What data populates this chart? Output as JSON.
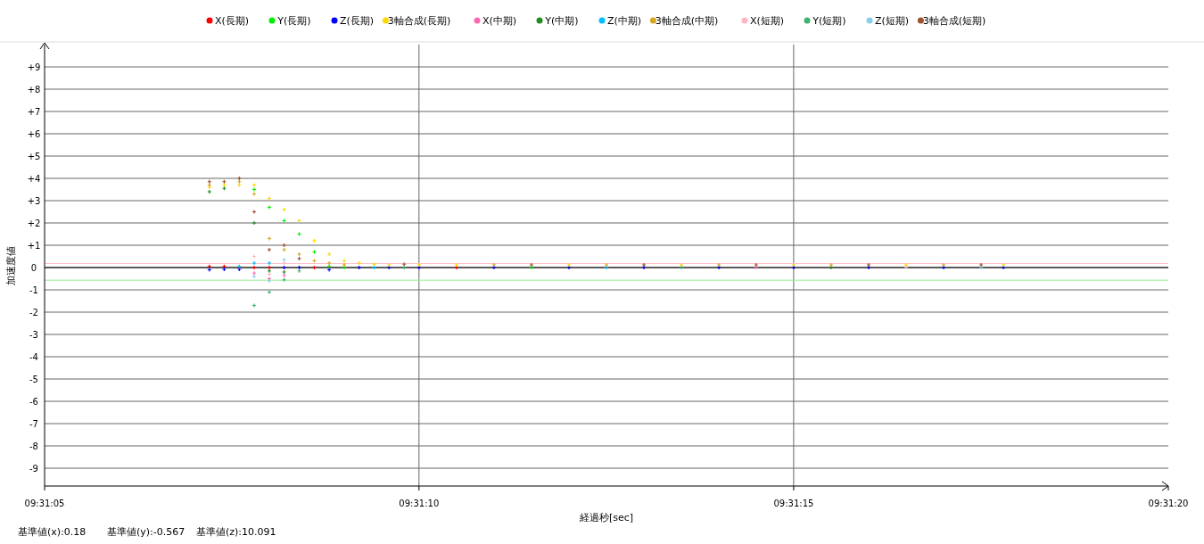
{
  "chart_data": {
    "type": "scatter",
    "xlabel": "経過秒[sec]",
    "ylabel": "加速度値",
    "annotations": [
      "基準値(x):0.18",
      "基準値(y):-0.567",
      "基準値(z):10.091"
    ],
    "x": [
      9.518667,
      9.518722,
      9.518778,
      9.518833,
      9.518889,
      9.518944,
      9.519,
      9.519056,
      9.519111,
      9.519167,
      9.519222,
      9.519278,
      9.519333,
      9.519389,
      9.519444,
      9.519583,
      9.519722,
      9.519861,
      9.52,
      9.520139,
      9.520278,
      9.520417,
      9.520556,
      9.520694,
      9.520833,
      9.520972,
      9.521111,
      9.52125,
      9.521389,
      9.521528,
      9.521611
    ],
    "series": [
      {
        "name": "X(長期)",
        "color": "#ff0000",
        "values": [
          0.05,
          0.05,
          null,
          0,
          0,
          null,
          null,
          0,
          null,
          null,
          null,
          null,
          null,
          null,
          null,
          0,
          null,
          null,
          null,
          null,
          null,
          null,
          null,
          null,
          null,
          null,
          null,
          null,
          null,
          null,
          null
        ]
      },
      {
        "name": "Y(長期)",
        "color": "#00ee00",
        "values": [
          null,
          null,
          null,
          3.5,
          2.7,
          2.1,
          1.5,
          0.7,
          0.05,
          0,
          null,
          null,
          null,
          null,
          null,
          null,
          null,
          0,
          null,
          null,
          null,
          null,
          null,
          null,
          null,
          null,
          null,
          null,
          null,
          null,
          null
        ]
      },
      {
        "name": "Z(長期)",
        "color": "#0000ff",
        "values": [
          -0.1,
          -0.08,
          -0.08,
          null,
          null,
          0,
          0,
          null,
          -0.1,
          null,
          0,
          null,
          0,
          null,
          0,
          null,
          0,
          null,
          0,
          null,
          0,
          null,
          0,
          null,
          0,
          null,
          0,
          null,
          0,
          null,
          0
        ]
      },
      {
        "name": "3軸合成(長期)",
        "color": "#ffd700",
        "values": [
          3.6,
          3.7,
          3.7,
          3.7,
          3.1,
          2.6,
          2.1,
          1.2,
          0.6,
          0.3,
          0.2,
          0.15,
          0.12,
          null,
          0.12,
          0.12,
          null,
          null,
          0.12,
          null,
          null,
          0.12,
          null,
          null,
          0.12,
          null,
          null,
          0.12,
          null,
          null,
          0.12
        ]
      },
      {
        "name": "X(中期)",
        "color": "#ff69b4",
        "values": [
          null,
          null,
          null,
          -0.25,
          -0.5,
          -0.35,
          null,
          null,
          null,
          null,
          null,
          null,
          null,
          null,
          null,
          null,
          null,
          null,
          null,
          null,
          null,
          null,
          null,
          0,
          null,
          null,
          null,
          null,
          null,
          null,
          null
        ]
      },
      {
        "name": "Y(中期)",
        "color": "#228b22",
        "values": [
          3.4,
          3.55,
          null,
          2.0,
          -0.15,
          -0.2,
          null,
          null,
          null,
          null,
          null,
          null,
          null,
          null,
          null,
          null,
          null,
          null,
          null,
          null,
          null,
          null,
          null,
          null,
          null,
          0,
          null,
          null,
          null,
          null,
          null
        ]
      },
      {
        "name": "Z(中期)",
        "color": "#00bfff",
        "values": [
          null,
          null,
          0.05,
          0.2,
          0.2,
          null,
          null,
          null,
          null,
          null,
          null,
          0,
          null,
          null,
          null,
          null,
          null,
          null,
          null,
          0,
          null,
          null,
          null,
          null,
          null,
          null,
          null,
          null,
          null,
          null,
          null
        ]
      },
      {
        "name": "3軸合成(中期)",
        "color": "#daa520",
        "values": [
          3.7,
          null,
          3.85,
          3.3,
          1.3,
          0.8,
          0.6,
          0.3,
          0.2,
          0.12,
          null,
          null,
          null,
          null,
          null,
          null,
          0.12,
          null,
          null,
          0.12,
          null,
          null,
          0.12,
          null,
          null,
          0.12,
          null,
          null,
          0.12,
          null,
          null
        ]
      },
      {
        "name": "X(短期)",
        "color": "#ffb6c1",
        "values": [
          null,
          null,
          null,
          0.5,
          -0.3,
          0.2,
          null,
          null,
          null,
          null,
          null,
          null,
          null,
          null,
          null,
          null,
          null,
          null,
          null,
          null,
          null,
          null,
          null,
          null,
          null,
          null,
          null,
          0,
          null,
          null,
          null
        ]
      },
      {
        "name": "Y(短期)",
        "color": "#3cb371",
        "values": [
          null,
          null,
          null,
          -1.7,
          -1.1,
          -0.55,
          -0.15,
          null,
          null,
          null,
          null,
          null,
          null,
          0,
          null,
          null,
          null,
          null,
          null,
          null,
          null,
          0,
          null,
          null,
          null,
          null,
          null,
          null,
          null,
          null,
          null
        ]
      },
      {
        "name": "Z(短期)",
        "color": "#87ceeb",
        "values": [
          null,
          null,
          null,
          -0.4,
          -0.6,
          0.35,
          null,
          null,
          null,
          null,
          null,
          null,
          null,
          null,
          null,
          null,
          null,
          null,
          null,
          null,
          null,
          null,
          null,
          null,
          null,
          null,
          null,
          null,
          null,
          0,
          null
        ]
      },
      {
        "name": "3軸合成(短期)",
        "color": "#a0522d",
        "values": [
          3.85,
          3.85,
          4.0,
          2.5,
          0.8,
          1.0,
          0.4,
          null,
          null,
          null,
          null,
          null,
          null,
          0.15,
          null,
          null,
          null,
          0.12,
          null,
          null,
          0.12,
          null,
          null,
          0.12,
          null,
          null,
          0.12,
          null,
          null,
          0.12,
          null
        ]
      }
    ],
    "xlim": [
      9.518056,
      9.522222
    ],
    "xticks": [
      {
        "value": 9.518056,
        "label": "09:31:05"
      },
      {
        "value": 9.519444,
        "label": "09:31:10"
      },
      {
        "value": 9.520833,
        "label": "09:31:15"
      },
      {
        "value": 9.522222,
        "label": "09:31:20"
      }
    ],
    "ylim": [
      -9.8,
      10
    ],
    "yticks": [
      -9,
      -8,
      -7,
      -6,
      -5,
      -4,
      -3,
      -2,
      -1,
      0,
      {
        "value": 1,
        "label": "+1"
      },
      {
        "value": 2,
        "label": "+2"
      },
      {
        "value": 3,
        "label": "+3"
      },
      {
        "value": 4,
        "label": "+4"
      },
      {
        "value": 5,
        "label": "+5"
      },
      {
        "value": 6,
        "label": "+6"
      },
      {
        "value": 7,
        "label": "+7"
      },
      {
        "value": 8,
        "label": "+8"
      },
      {
        "value": 9,
        "label": "+9"
      }
    ],
    "ref_lines": [
      {
        "axis": "y",
        "value": 0,
        "color": "#000000"
      },
      {
        "axis": "y",
        "value": 0.18,
        "color": "#ffc0cb"
      },
      {
        "axis": "y",
        "value": -0.567,
        "color": "#90ee90"
      }
    ],
    "grid": true,
    "legend": "top",
    "marker": "cross"
  }
}
